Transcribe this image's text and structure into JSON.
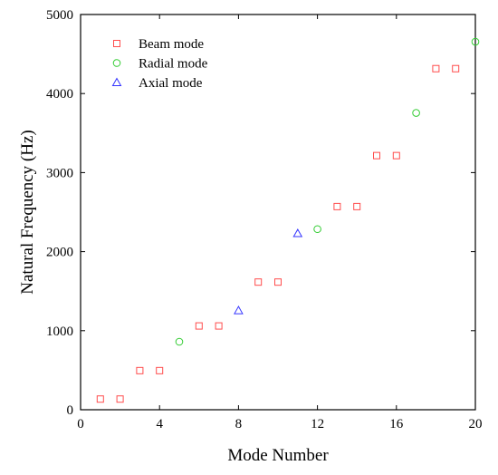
{
  "chart_data": {
    "type": "scatter",
    "title": "",
    "xlabel": "Mode Number",
    "ylabel": "Natural Frequency (Hz)",
    "xlim": [
      0,
      20
    ],
    "ylim": [
      0,
      5000
    ],
    "xticks": [
      0,
      4,
      8,
      12,
      16,
      20
    ],
    "yticks": [
      0,
      1000,
      2000,
      3000,
      4000,
      5000
    ],
    "grid": false,
    "legend_position": "top-left",
    "series": [
      {
        "name": "Beam mode",
        "marker": "square",
        "color": "#ff4d4d",
        "points": [
          [
            1,
            135
          ],
          [
            2,
            135
          ],
          [
            3,
            495
          ],
          [
            4,
            495
          ],
          [
            6,
            1060
          ],
          [
            7,
            1060
          ],
          [
            9,
            1615
          ],
          [
            10,
            1615
          ],
          [
            13,
            2570
          ],
          [
            14,
            2570
          ],
          [
            15,
            3215
          ],
          [
            16,
            3215
          ],
          [
            18,
            4315
          ],
          [
            19,
            4315
          ]
        ]
      },
      {
        "name": "Radial mode",
        "marker": "circle",
        "color": "#33cc33",
        "points": [
          [
            5,
            860
          ],
          [
            12,
            2285
          ],
          [
            17,
            3755
          ],
          [
            20,
            4655
          ]
        ]
      },
      {
        "name": "Axial mode",
        "marker": "triangle",
        "color": "#3333ff",
        "points": [
          [
            8,
            1255
          ],
          [
            11,
            2230
          ]
        ]
      }
    ]
  }
}
